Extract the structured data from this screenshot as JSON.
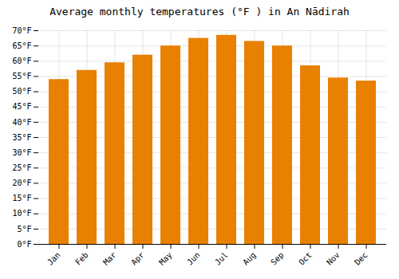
{
  "chart_data": {
    "type": "bar",
    "title": "Average monthly temperatures (°F ) in An Nādirah",
    "categories": [
      "Jan",
      "Feb",
      "Mar",
      "Apr",
      "May",
      "Jun",
      "Jul",
      "Aug",
      "Sep",
      "Oct",
      "Nov",
      "Dec"
    ],
    "values": [
      54.0,
      57.0,
      59.5,
      62.0,
      65.0,
      67.5,
      68.5,
      66.5,
      65.0,
      58.5,
      54.5,
      53.5
    ],
    "color": "#E88000",
    "ylim": [
      0,
      70
    ],
    "yticks": [
      {
        "value": 0,
        "label": "0°F"
      },
      {
        "value": 5,
        "label": "5°F"
      },
      {
        "value": 10,
        "label": "10°F"
      },
      {
        "value": 15,
        "label": "15°F"
      },
      {
        "value": 20,
        "label": "20°F"
      },
      {
        "value": 25,
        "label": "25°F"
      },
      {
        "value": 30,
        "label": "30°F"
      },
      {
        "value": 35,
        "label": "35°F"
      },
      {
        "value": 40,
        "label": "40°F"
      },
      {
        "value": 45,
        "label": "45°F"
      },
      {
        "value": 50,
        "label": "50°F"
      },
      {
        "value": 55,
        "label": "55°F"
      },
      {
        "value": 60,
        "label": "60°F"
      },
      {
        "value": 65,
        "label": "65°F"
      },
      {
        "value": 70,
        "label": "70°F"
      }
    ],
    "grid": true
  }
}
